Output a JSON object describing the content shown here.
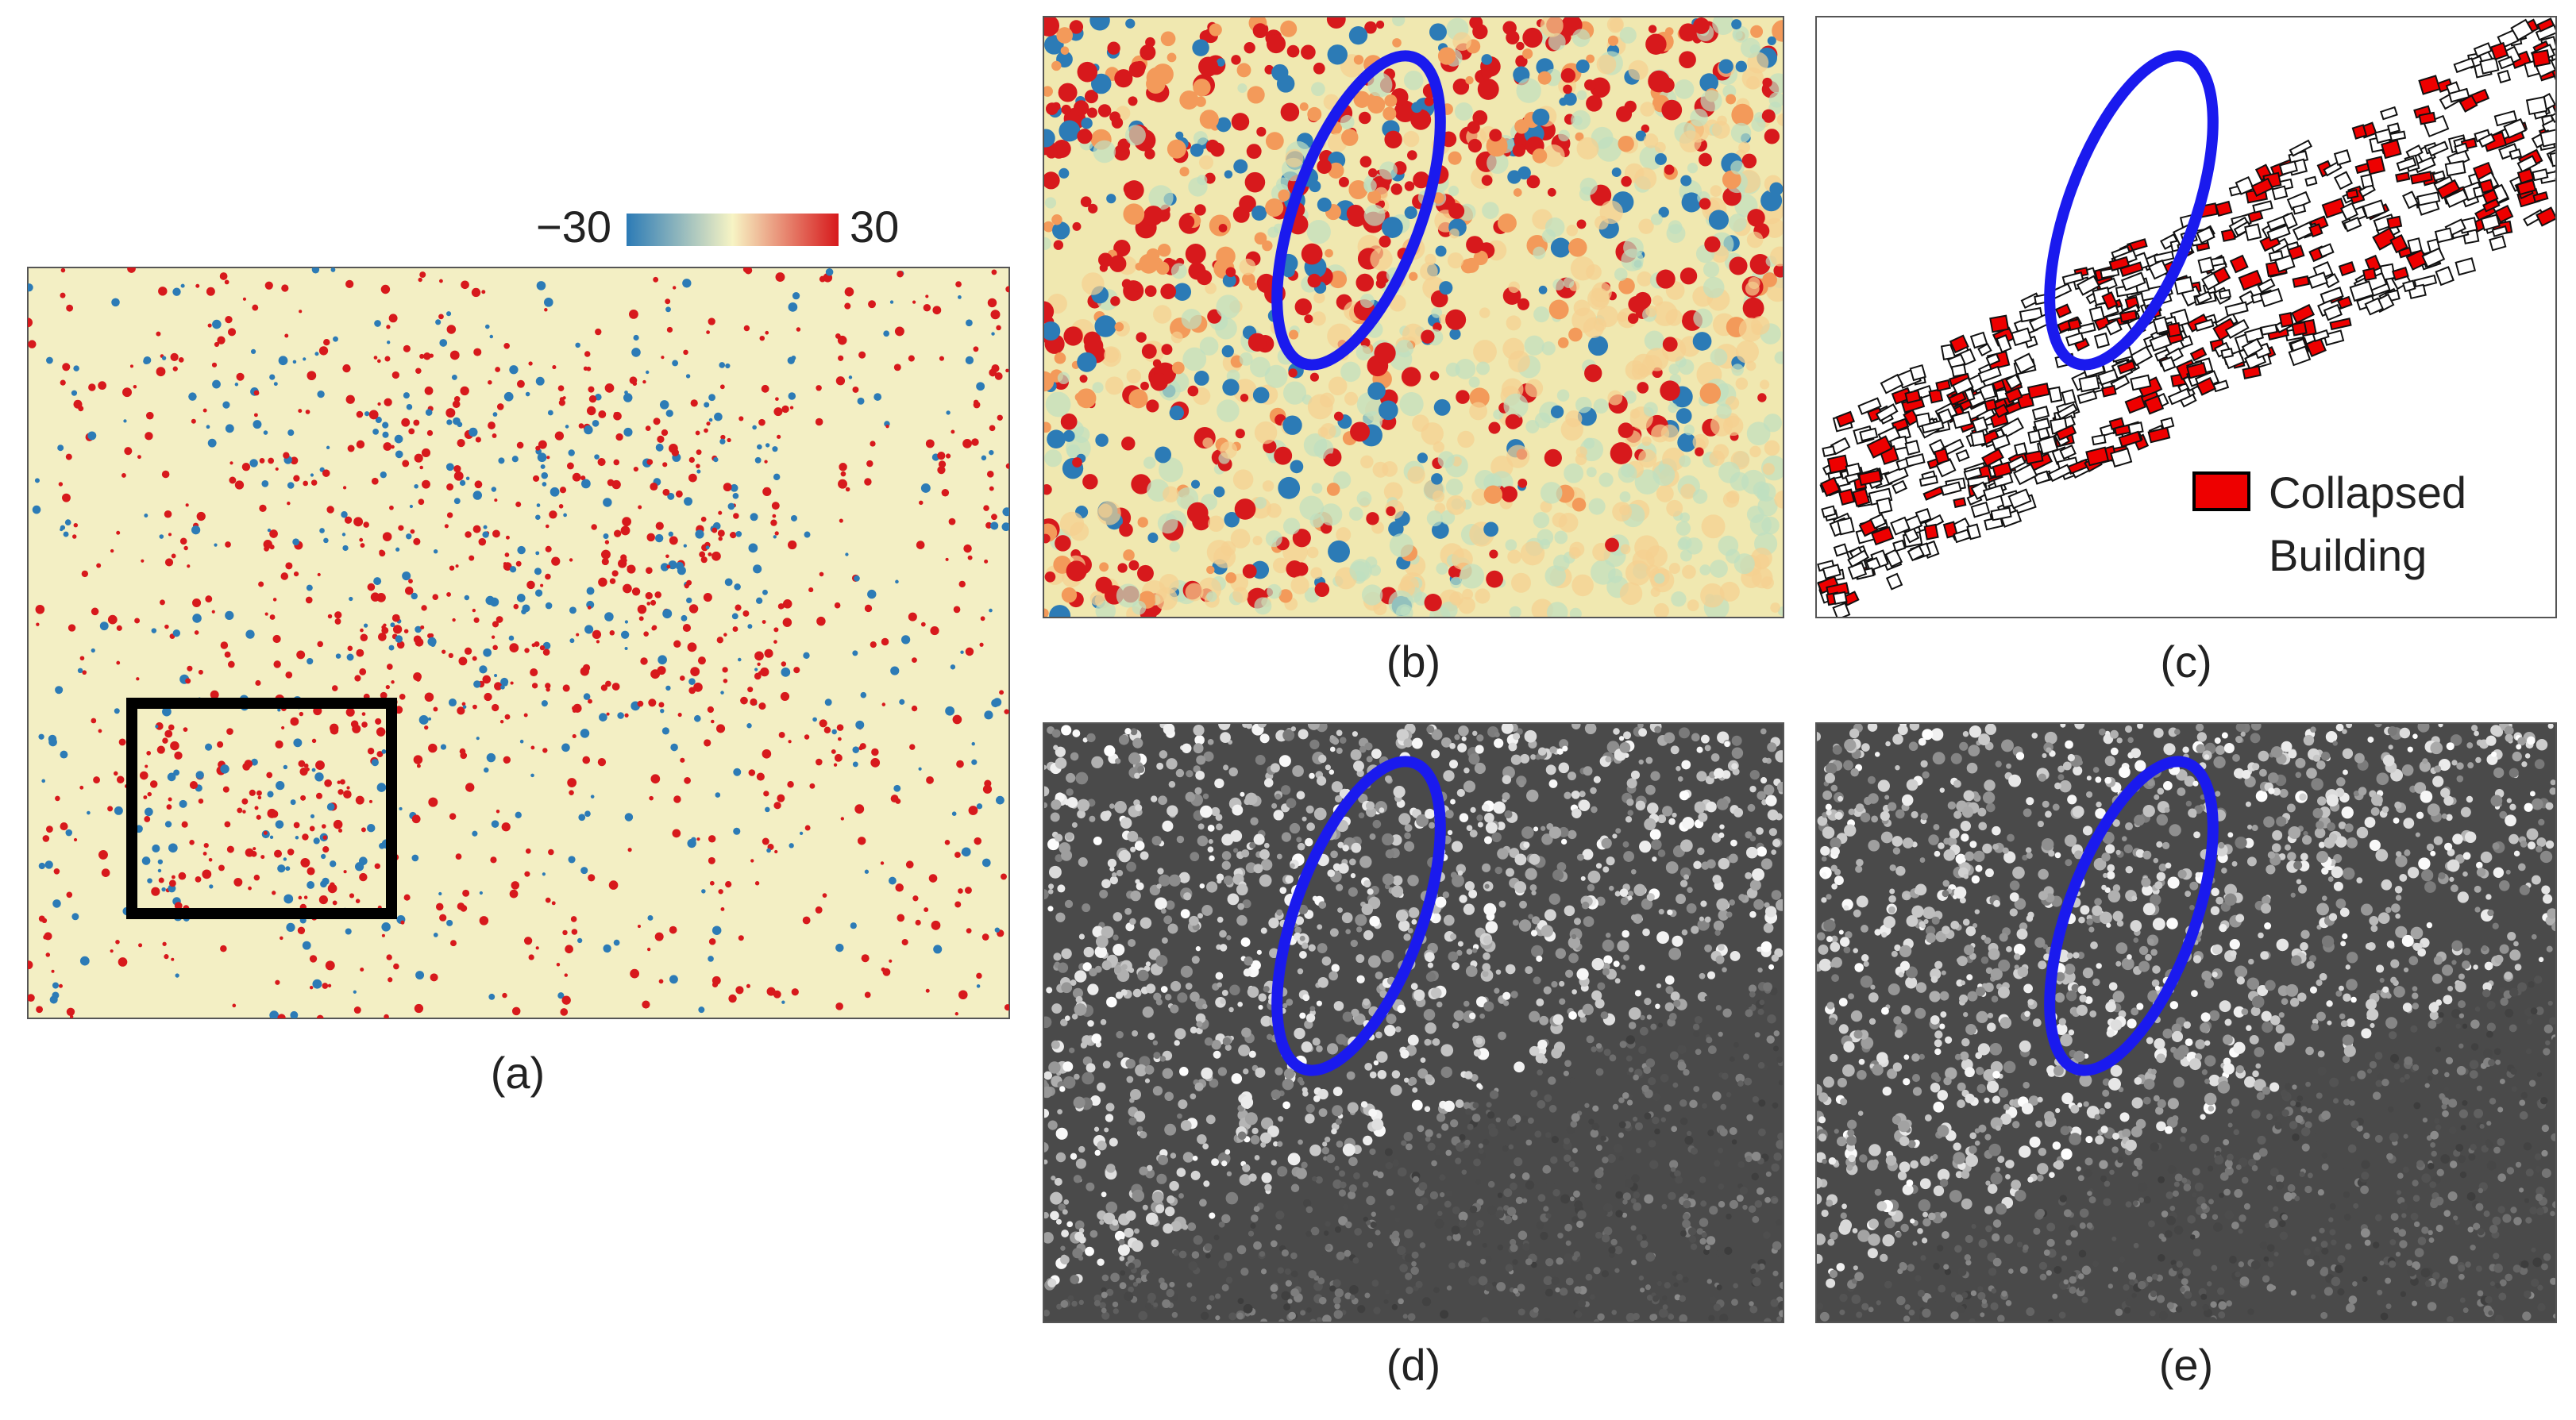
{
  "colorbar": {
    "ticks": [
      {
        "value": -30,
        "label": "−30"
      },
      {
        "value": 30,
        "label": "30"
      }
    ]
  },
  "panels": [
    {
      "label": "(a)"
    },
    {
      "label": "(b)"
    },
    {
      "label": "(c)"
    },
    {
      "label": "(d)"
    },
    {
      "label": "(e)"
    }
  ],
  "legend": {
    "lines": [
      "Collapsed",
      "Building"
    ]
  }
}
